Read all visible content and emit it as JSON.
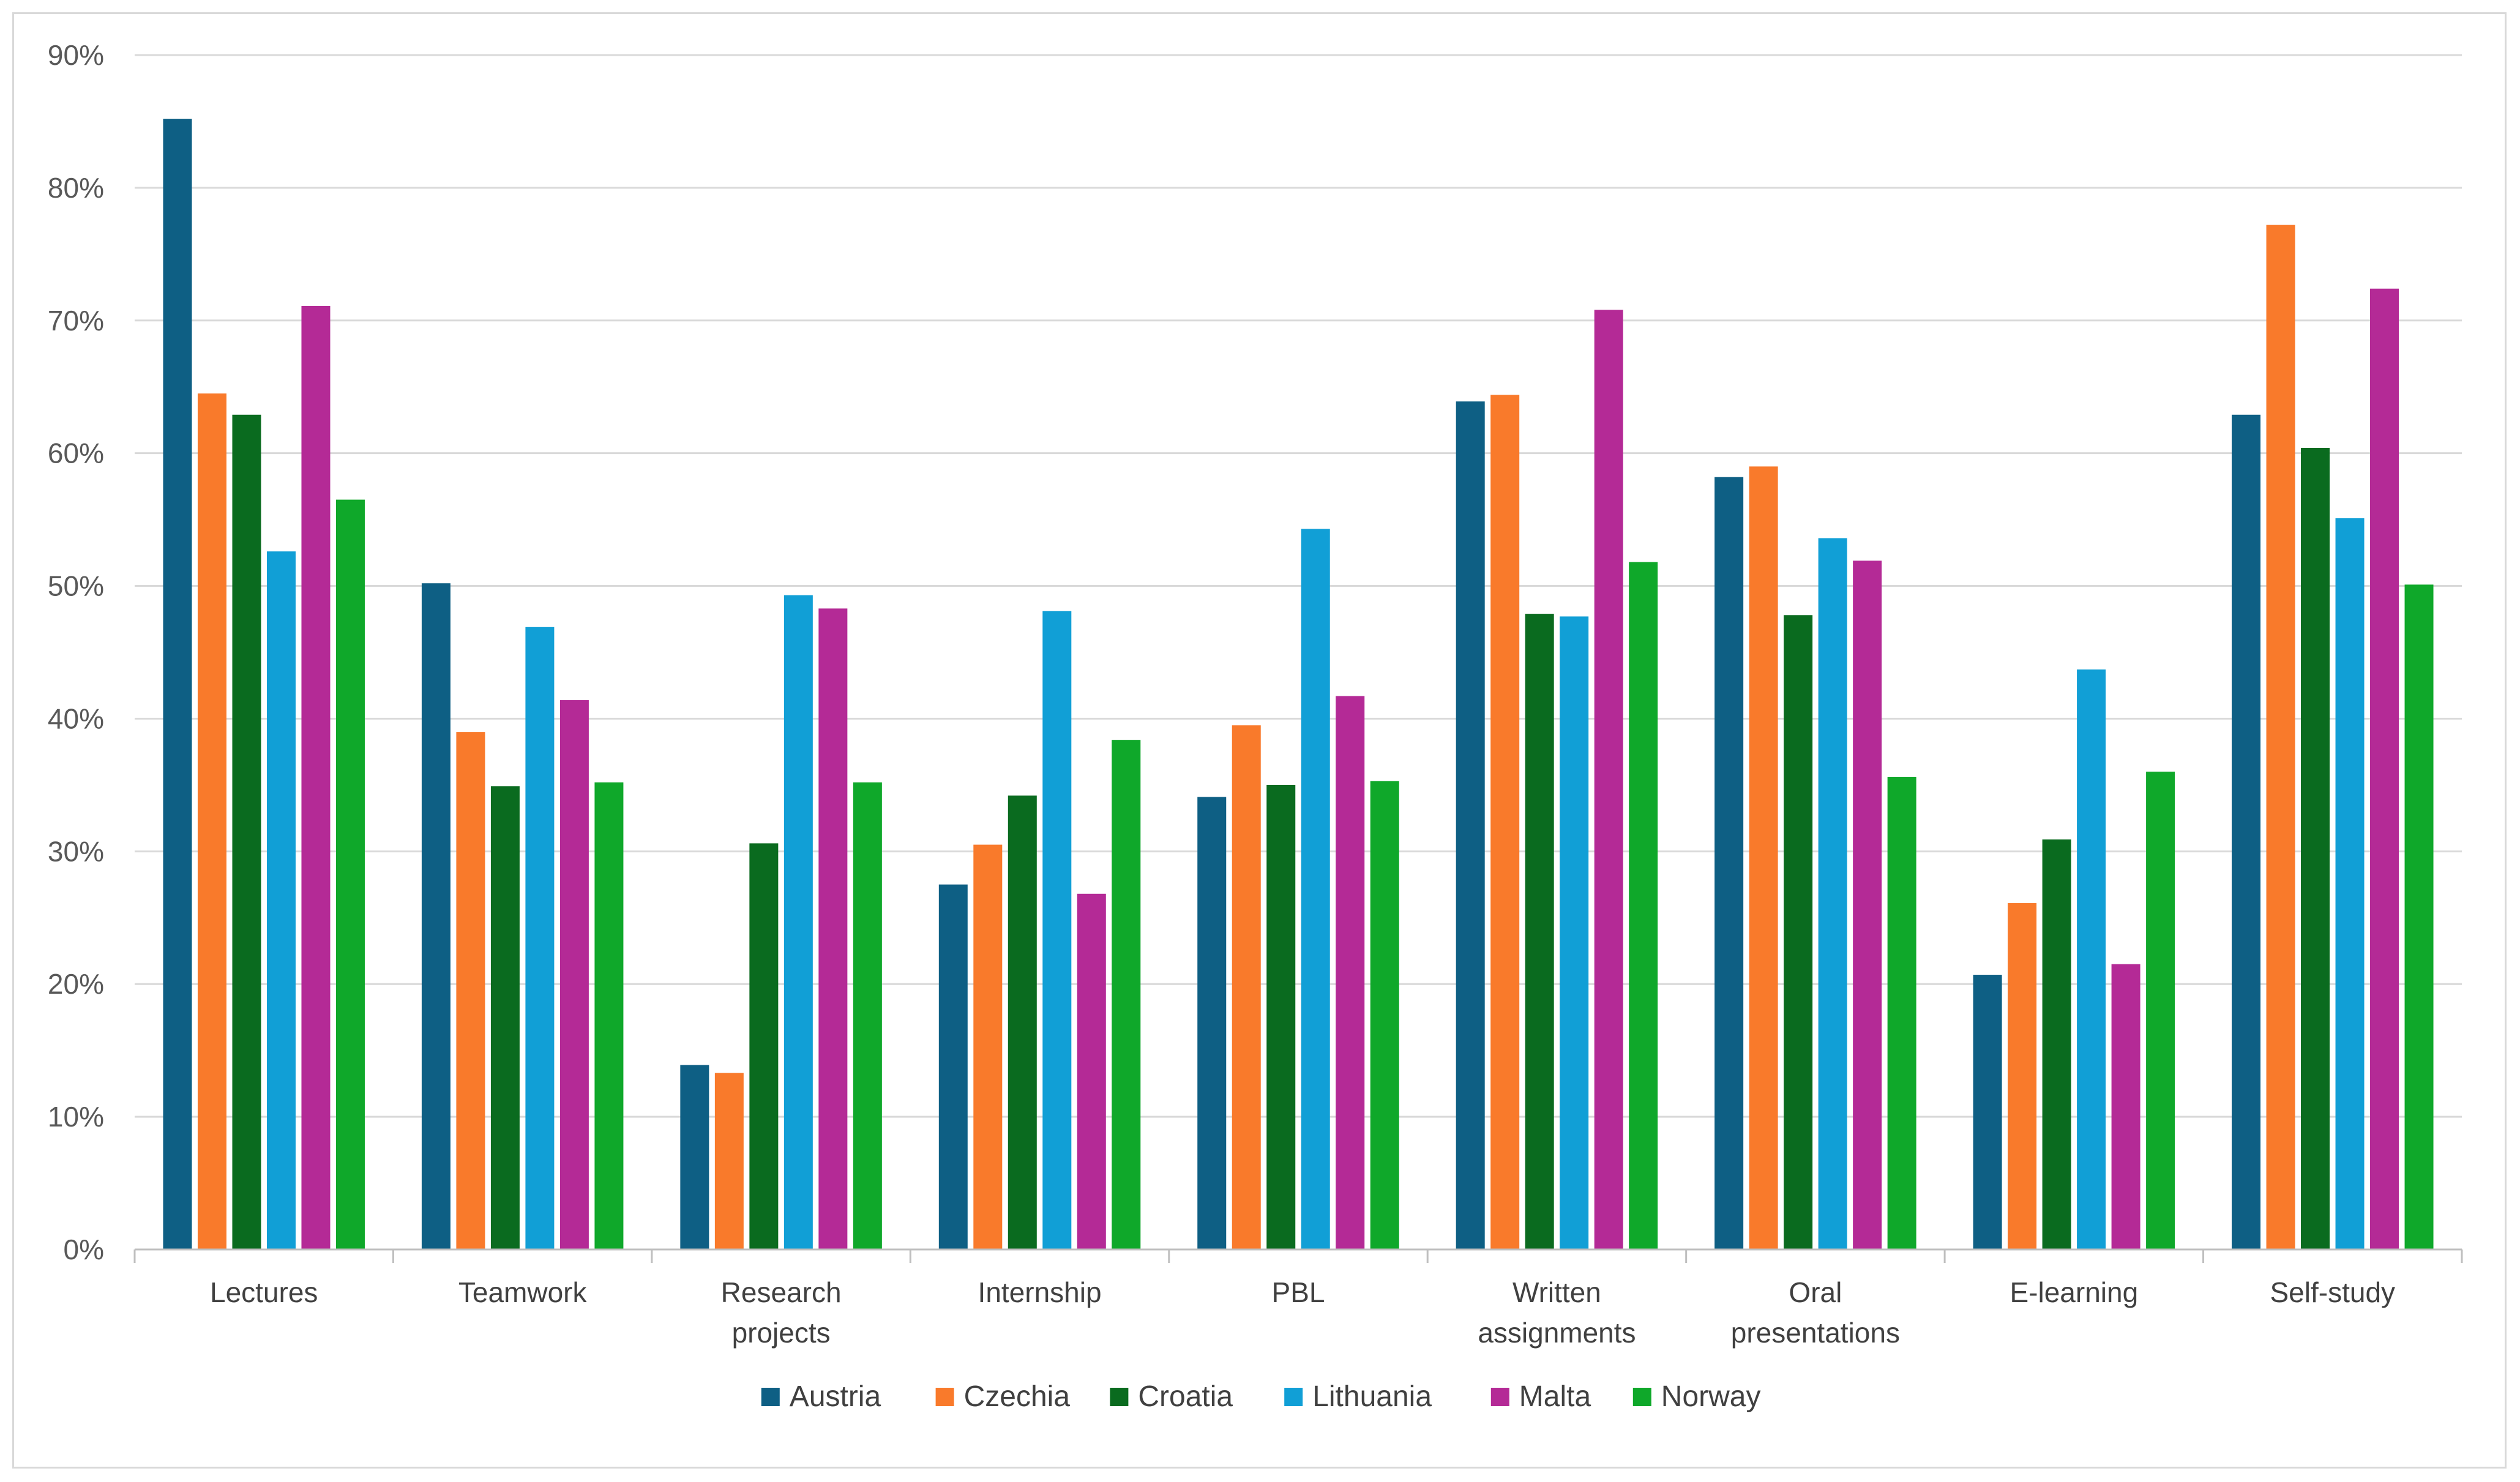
{
  "chart_data": {
    "type": "bar",
    "title": "",
    "xlabel": "",
    "ylabel": "",
    "ylim": [
      0,
      90
    ],
    "y_tick_labels": [
      "0%",
      "10%",
      "20%",
      "30%",
      "40%",
      "50%",
      "60%",
      "70%",
      "80%",
      "90%"
    ],
    "grid": true,
    "legend_position": "bottom",
    "categories": [
      [
        "Lectures"
      ],
      [
        "Teamwork"
      ],
      [
        "Research",
        "projects"
      ],
      [
        "Internship"
      ],
      [
        "PBL"
      ],
      [
        "Written",
        "assignments"
      ],
      [
        "Oral",
        "presentations"
      ],
      [
        "E-learning"
      ],
      [
        "Self-study"
      ]
    ],
    "series": [
      {
        "name": "Austria",
        "color": "#0e5f84",
        "values": [
          85.2,
          50.2,
          13.9,
          27.5,
          34.1,
          63.9,
          58.2,
          20.7,
          62.9
        ]
      },
      {
        "name": "Czechia",
        "color": "#f97a2b",
        "values": [
          64.5,
          39.0,
          13.3,
          30.5,
          39.5,
          64.4,
          59.0,
          26.1,
          77.2
        ]
      },
      {
        "name": "Croatia",
        "color": "#0a6b1f",
        "values": [
          62.9,
          34.9,
          30.6,
          34.2,
          35.0,
          47.9,
          47.8,
          30.9,
          60.4
        ]
      },
      {
        "name": "Lithuania",
        "color": "#119fd6",
        "values": [
          52.6,
          46.9,
          49.3,
          48.1,
          54.3,
          47.7,
          53.6,
          43.7,
          55.1
        ]
      },
      {
        "name": "Malta",
        "color": "#b42a96",
        "values": [
          71.1,
          41.4,
          48.3,
          26.8,
          41.7,
          70.8,
          51.9,
          21.5,
          72.4
        ]
      },
      {
        "name": "Norway",
        "color": "#0fa82a",
        "values": [
          56.5,
          35.2,
          35.2,
          38.4,
          35.3,
          51.8,
          35.6,
          36.0,
          50.1
        ]
      }
    ]
  }
}
